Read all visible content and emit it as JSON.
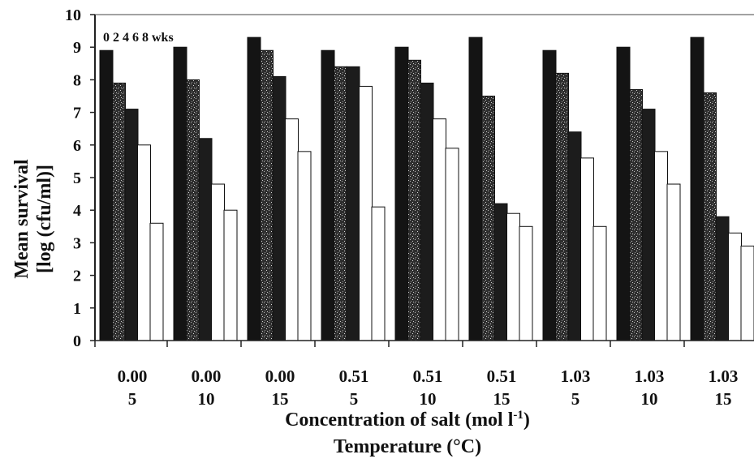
{
  "chart_data": {
    "type": "bar",
    "legend": {
      "text": "0 2 4 6 8 wks",
      "placement": "top-left"
    },
    "ylabel_line1": "Mean survival",
    "ylabel_line2": "[log (cfu/ml)]",
    "xlabel_line1": "Concentration of salt (mol l",
    "xlabel_superscript": "-1",
    "xlabel_line1_end": ")",
    "xlabel_line2": "Temperature (°C)",
    "ylim": [
      0,
      10
    ],
    "yticks": [
      "0",
      "1",
      "2",
      "3",
      "4",
      "5",
      "6",
      "7",
      "8",
      "9",
      "10"
    ],
    "categories": [
      {
        "salt": "0.00",
        "temp": "5"
      },
      {
        "salt": "0.00",
        "temp": "10"
      },
      {
        "salt": "0.00",
        "temp": "15"
      },
      {
        "salt": "0.51",
        "temp": "5"
      },
      {
        "salt": "0.51",
        "temp": "10"
      },
      {
        "salt": "0.51",
        "temp": "15"
      },
      {
        "salt": "1.03",
        "temp": "5"
      },
      {
        "salt": "1.03",
        "temp": "10"
      },
      {
        "salt": "1.03",
        "temp": "15"
      }
    ],
    "series": [
      {
        "name": "0",
        "color": "#141414",
        "values": [
          8.9,
          9.0,
          9.3,
          8.9,
          9.0,
          9.3,
          8.9,
          9.0,
          9.3
        ]
      },
      {
        "name": "2",
        "color": "#3a3a3a",
        "values": [
          7.9,
          8.0,
          8.9,
          8.4,
          8.6,
          7.5,
          8.2,
          7.7,
          7.6
        ]
      },
      {
        "name": "4",
        "color": "#1c1c1c",
        "values": [
          7.1,
          6.2,
          8.1,
          8.4,
          7.9,
          4.2,
          6.4,
          7.1,
          3.8
        ]
      },
      {
        "name": "6",
        "color": "#ffffff",
        "values": [
          6.0,
          4.8,
          6.8,
          7.8,
          6.8,
          3.9,
          5.6,
          5.8,
          3.3
        ]
      },
      {
        "name": "8",
        "color": "#ffffff",
        "values": [
          3.6,
          4.0,
          5.8,
          4.1,
          5.9,
          3.5,
          3.5,
          4.8,
          2.9
        ]
      }
    ],
    "grid": false
  }
}
